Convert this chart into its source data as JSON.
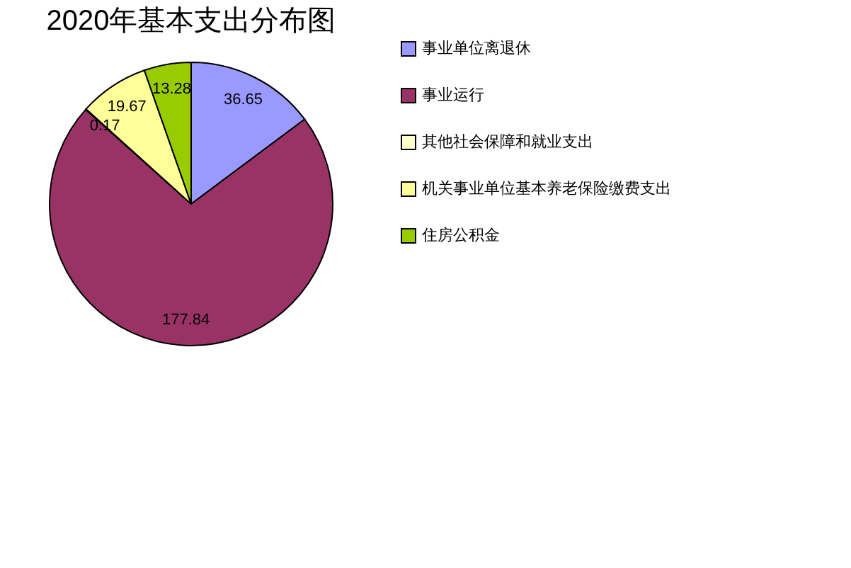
{
  "chart_data": {
    "type": "pie",
    "title": "2020年基本支出分布图",
    "categories": [
      "事业单位离退休",
      "事业运行",
      "其他社会保障和就业支出",
      "机关事业单位基本养老保险缴费支出",
      "住房公积金"
    ],
    "values": [
      36.65,
      177.84,
      0.17,
      19.67,
      13.28
    ],
    "colors": [
      "#9999ff",
      "#993366",
      "#ffffcc",
      "#ffff99",
      "#99cc00"
    ],
    "data_labels": true,
    "legend": "right"
  }
}
